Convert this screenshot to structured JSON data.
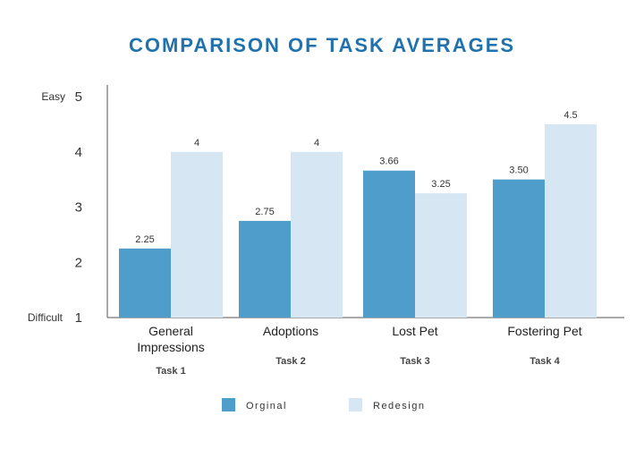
{
  "chart_data": {
    "type": "bar",
    "title": "COMPARISON OF TASK AVERAGES",
    "categories": [
      {
        "lines": [
          "General",
          "Impressions"
        ],
        "task": "Task 1"
      },
      {
        "lines": [
          "Adoptions"
        ],
        "task": "Task 2"
      },
      {
        "lines": [
          "Lost Pet"
        ],
        "task": "Task 3"
      },
      {
        "lines": [
          "Fostering Pet"
        ],
        "task": "Task 4"
      }
    ],
    "series": [
      {
        "name": "Orginal",
        "color": "#4f9dcb",
        "values": [
          2.25,
          2.75,
          3.66,
          3.5
        ],
        "labels": [
          "2.25",
          "2.75",
          "3.66",
          "3.50"
        ]
      },
      {
        "name": "Redesign",
        "color": "#d6e7f3",
        "values": [
          4,
          4,
          3.25,
          4.5
        ],
        "labels": [
          "4",
          "4",
          "3.25",
          "4.5"
        ]
      }
    ],
    "yticks": [
      1,
      2,
      3,
      4,
      5
    ],
    "ylim": [
      1,
      5
    ],
    "y_top_label": "Easy",
    "y_bottom_label": "Difficult",
    "legend_position": "bottom"
  }
}
